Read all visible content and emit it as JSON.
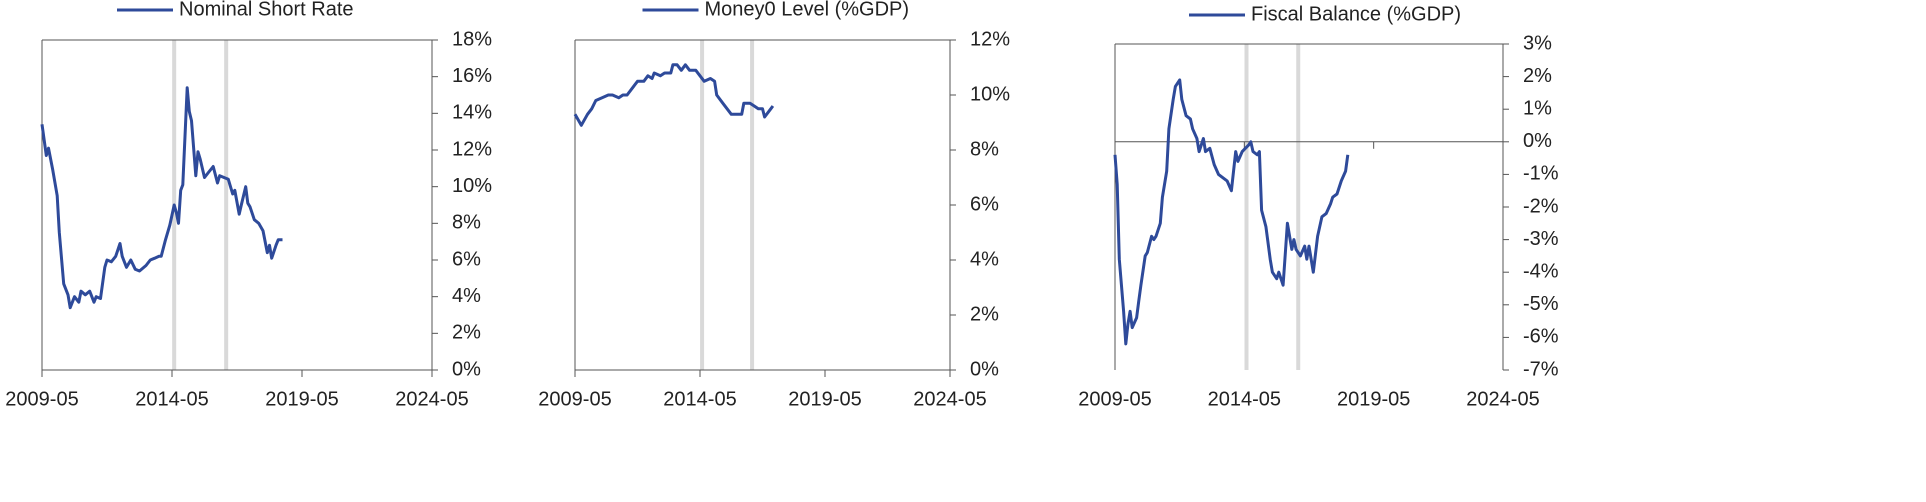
{
  "chart_data": [
    {
      "type": "line",
      "title": "Nominal Short Rate",
      "x": [
        "2009-05",
        "2009-07",
        "2009-08",
        "2009-10",
        "2009-12",
        "2010-01",
        "2010-03",
        "2010-05",
        "2010-06",
        "2010-08",
        "2010-10",
        "2010-11",
        "2011-01",
        "2011-03",
        "2011-05",
        "2011-06",
        "2011-08",
        "2011-10",
        "2011-11",
        "2012-01",
        "2012-03",
        "2012-05",
        "2012-06",
        "2012-08",
        "2012-10",
        "2012-12",
        "2013-02",
        "2013-05",
        "2013-07",
        "2013-09",
        "2013-11",
        "2013-12",
        "2014-02",
        "2014-04",
        "2014-06",
        "2014-07",
        "2014-08",
        "2014-09",
        "2014-10",
        "2014-12",
        "2015-01",
        "2015-02",
        "2015-04",
        "2015-05",
        "2015-06",
        "2015-08",
        "2015-10",
        "2015-12",
        "2016-02",
        "2016-03",
        "2016-05",
        "2016-07",
        "2016-09",
        "2016-10",
        "2016-12",
        "2017-01",
        "2017-03",
        "2017-04",
        "2017-05",
        "2017-07",
        "2017-09",
        "2017-11",
        "2018-01",
        "2018-02",
        "2018-03",
        "2018-05",
        "2018-06",
        "2018-08"
      ],
      "series": [
        {
          "name": "Nominal Short Rate",
          "color": "#2e4a9a",
          "values": [
            13.4,
            11.7,
            12.1,
            10.9,
            9.5,
            7.5,
            4.7,
            4.1,
            3.4,
            4.0,
            3.7,
            4.3,
            4.1,
            4.3,
            3.7,
            4.0,
            3.9,
            5.6,
            6.0,
            5.9,
            6.2,
            6.9,
            6.2,
            5.6,
            6.0,
            5.5,
            5.4,
            5.7,
            6.0,
            6.1,
            6.2,
            6.2,
            7.1,
            7.9,
            9.0,
            8.6,
            8.0,
            9.8,
            10.1,
            15.4,
            14.1,
            13.6,
            10.6,
            11.9,
            11.5,
            10.5,
            10.8,
            11.1,
            10.2,
            10.6,
            10.5,
            10.4,
            9.6,
            9.8,
            8.5,
            9.0,
            10.0,
            9.1,
            8.9,
            8.2,
            8.0,
            7.6,
            6.4,
            6.8,
            6.1,
            6.8,
            7.1,
            7.1
          ]
        }
      ],
      "xlim": [
        "2009-05",
        "2024-05"
      ],
      "xticks": [
        "2009-05",
        "2014-05",
        "2019-05",
        "2024-05"
      ],
      "ylim": [
        0,
        18
      ],
      "yticks": [
        {
          "value": 0,
          "label": "0%"
        },
        {
          "value": 2,
          "label": "2%"
        },
        {
          "value": 4,
          "label": "4%"
        },
        {
          "value": 6,
          "label": "6%"
        },
        {
          "value": 8,
          "label": "8%"
        },
        {
          "value": 10,
          "label": "10%"
        },
        {
          "value": 12,
          "label": "12%"
        },
        {
          "value": 14,
          "label": "14%"
        },
        {
          "value": 16,
          "label": "16%"
        },
        {
          "value": 18,
          "label": "18%"
        }
      ],
      "highlight_x": [
        "2014-06",
        "2016-06"
      ],
      "highlight_color": "#d9d9d9"
    },
    {
      "type": "line",
      "title": "Money0 Level (%GDP)",
      "x": [
        "2009-05",
        "2009-08",
        "2009-11",
        "2010-01",
        "2010-03",
        "2010-06",
        "2010-09",
        "2010-11",
        "2011-02",
        "2011-04",
        "2011-06",
        "2011-09",
        "2011-11",
        "2012-02",
        "2012-04",
        "2012-06",
        "2012-07",
        "2012-10",
        "2012-12",
        "2013-03",
        "2013-04",
        "2013-06",
        "2013-08",
        "2013-10",
        "2013-12",
        "2014-03",
        "2014-05",
        "2014-07",
        "2014-10",
        "2014-12",
        "2015-01",
        "2015-04",
        "2015-06",
        "2015-08",
        "2015-11",
        "2016-01",
        "2016-02",
        "2016-05",
        "2016-07",
        "2016-09",
        "2016-11",
        "2016-12",
        "2017-03",
        "2017-04"
      ],
      "series": [
        {
          "name": "Money0 Level (%GDP)",
          "color": "#2e4a9a",
          "values": [
            9.3,
            8.9,
            9.3,
            9.5,
            9.8,
            9.9,
            10.0,
            10.0,
            9.9,
            10.0,
            10.0,
            10.3,
            10.5,
            10.5,
            10.7,
            10.6,
            10.8,
            10.7,
            10.8,
            10.8,
            11.1,
            11.1,
            10.9,
            11.1,
            10.9,
            10.9,
            10.7,
            10.5,
            10.6,
            10.5,
            10.0,
            9.7,
            9.5,
            9.3,
            9.3,
            9.3,
            9.7,
            9.7,
            9.6,
            9.5,
            9.5,
            9.2,
            9.5,
            9.6
          ]
        }
      ],
      "xlim": [
        "2009-05",
        "2024-05"
      ],
      "xticks": [
        "2009-05",
        "2014-05",
        "2019-05",
        "2024-05"
      ],
      "ylim": [
        0,
        12
      ],
      "yticks": [
        {
          "value": 0,
          "label": "0%"
        },
        {
          "value": 2,
          "label": "2%"
        },
        {
          "value": 4,
          "label": "4%"
        },
        {
          "value": 6,
          "label": "6%"
        },
        {
          "value": 8,
          "label": "8%"
        },
        {
          "value": 10,
          "label": "10%"
        },
        {
          "value": 12,
          "label": "12%"
        }
      ],
      "highlight_x": [
        "2014-06",
        "2016-06"
      ],
      "highlight_color": "#d9d9d9"
    },
    {
      "type": "line",
      "title": "Fiscal Balance (%GDP)",
      "x": [
        "2009-05",
        "2009-06",
        "2009-07",
        "2009-09",
        "2009-10",
        "2009-11",
        "2009-12",
        "2010-01",
        "2010-03",
        "2010-04",
        "2010-05",
        "2010-07",
        "2010-08",
        "2010-10",
        "2010-11",
        "2010-12",
        "2011-02",
        "2011-03",
        "2011-05",
        "2011-06",
        "2011-08",
        "2011-09",
        "2011-11",
        "2011-12",
        "2012-02",
        "2012-04",
        "2012-05",
        "2012-07",
        "2012-08",
        "2012-10",
        "2012-11",
        "2013-01",
        "2013-03",
        "2013-05",
        "2013-07",
        "2013-09",
        "2013-11",
        "2014-01",
        "2014-02",
        "2014-04",
        "2014-07",
        "2014-08",
        "2014-09",
        "2014-11",
        "2014-12",
        "2015-01",
        "2015-03",
        "2015-05",
        "2015-06",
        "2015-08",
        "2015-09",
        "2015-11",
        "2016-01",
        "2016-03",
        "2016-04",
        "2016-05",
        "2016-07",
        "2016-09",
        "2016-10",
        "2016-11",
        "2017-01",
        "2017-03",
        "2017-05",
        "2017-07",
        "2017-09",
        "2017-10",
        "2017-12",
        "2018-02",
        "2018-04",
        "2018-05"
      ],
      "series": [
        {
          "name": "Fiscal Balance (%GDP)",
          "color": "#2e4a9a",
          "values": [
            -0.4,
            -1.3,
            -3.6,
            -5.2,
            -6.2,
            -5.6,
            -5.2,
            -5.7,
            -5.4,
            -4.9,
            -4.4,
            -3.5,
            -3.4,
            -2.9,
            -3.0,
            -2.9,
            -2.5,
            -1.7,
            -0.9,
            0.4,
            1.3,
            1.7,
            1.9,
            1.3,
            0.8,
            0.7,
            0.4,
            0.1,
            -0.3,
            0.1,
            -0.3,
            -0.2,
            -0.7,
            -1.0,
            -1.1,
            -1.2,
            -1.5,
            -0.3,
            -0.6,
            -0.3,
            -0.1,
            0.0,
            -0.3,
            -0.4,
            -0.3,
            -2.1,
            -2.6,
            -3.6,
            -4.0,
            -4.2,
            -4.0,
            -4.4,
            -2.5,
            -3.3,
            -3.0,
            -3.3,
            -3.5,
            -3.2,
            -3.6,
            -3.2,
            -4.0,
            -2.9,
            -2.3,
            -2.2,
            -1.9,
            -1.7,
            -1.6,
            -1.2,
            -0.9,
            -0.4
          ]
        }
      ],
      "xlim": [
        "2009-05",
        "2024-05"
      ],
      "xticks": [
        "2009-05",
        "2014-05",
        "2019-05",
        "2024-05"
      ],
      "ylim": [
        -7,
        3
      ],
      "yticks": [
        {
          "value": -7,
          "label": "-7%"
        },
        {
          "value": -6,
          "label": "-6%"
        },
        {
          "value": -5,
          "label": "-5%"
        },
        {
          "value": -4,
          "label": "-4%"
        },
        {
          "value": -3,
          "label": "-3%"
        },
        {
          "value": -2,
          "label": "-2%"
        },
        {
          "value": -1,
          "label": "-1%"
        },
        {
          "value": 0,
          "label": "0%"
        },
        {
          "value": 1,
          "label": "1%"
        },
        {
          "value": 2,
          "label": "2%"
        },
        {
          "value": 3,
          "label": "3%"
        }
      ],
      "highlight_x": [
        "2014-06",
        "2016-06"
      ],
      "highlight_color": "#d9d9d9"
    }
  ]
}
